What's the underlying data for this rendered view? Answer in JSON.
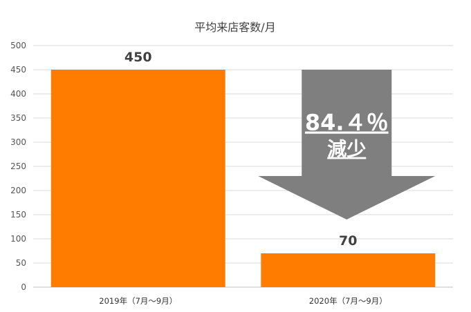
{
  "chart_data": {
    "type": "bar",
    "title": "平均来店客数/月",
    "categories": [
      "2019年（7月～9月）",
      "2020年（7月～9月）"
    ],
    "values": [
      450,
      70
    ],
    "ylim": [
      0,
      500
    ],
    "yticks": [
      0,
      50,
      100,
      150,
      200,
      250,
      300,
      350,
      400,
      450,
      500
    ],
    "xlabel": "",
    "ylabel": "",
    "grid": true,
    "bar_color": "#FF7C00",
    "annotation": {
      "line1": "84.４％",
      "line2": "減少",
      "arrow_color": "#7F7F7F",
      "text_color": "#FFFFFF"
    }
  }
}
